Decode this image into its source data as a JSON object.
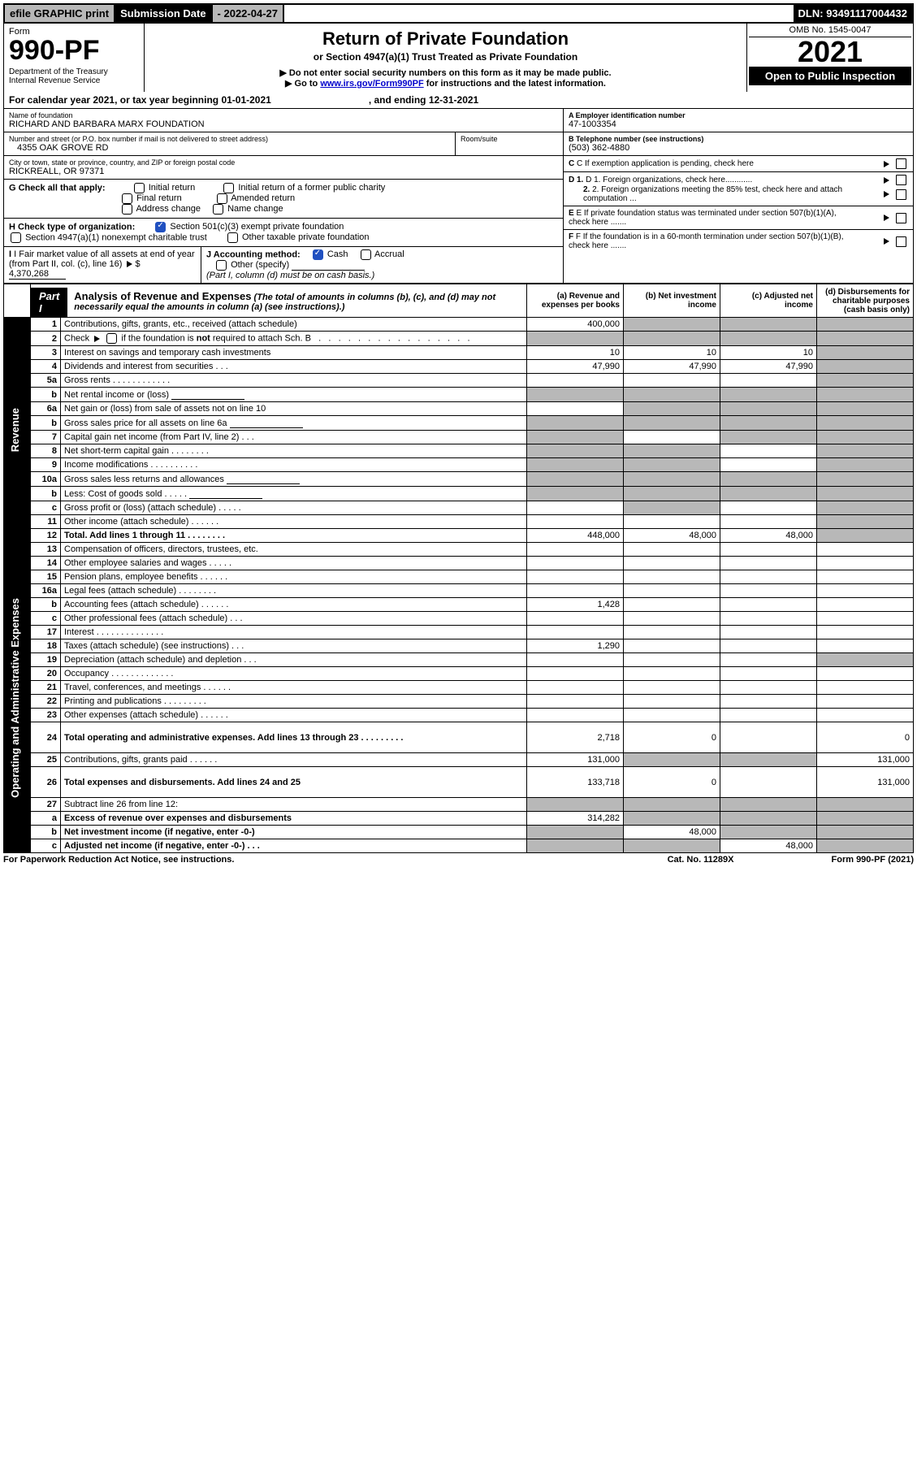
{
  "topbar": {
    "efile": "efile GRAPHIC print",
    "sub_lbl": "Submission Date",
    "sub_val": "- 2022-04-27",
    "dln": "DLN: 93491117004432"
  },
  "header": {
    "form_word": "Form",
    "form_num": "990-PF",
    "dept": "Department of the Treasury",
    "irs": "Internal Revenue Service",
    "title": "Return of Private Foundation",
    "subtitle": "or Section 4947(a)(1) Trust Treated as Private Foundation",
    "note1": "▶ Do not enter social security numbers on this form as it may be made public.",
    "note2a": "▶ Go to ",
    "note2link": "www.irs.gov/Form990PF",
    "note2b": " for instructions and the latest information.",
    "omb": "OMB No. 1545-0047",
    "year": "2021",
    "open": "Open to Public Inspection"
  },
  "calyear": {
    "a": "For calendar year 2021, or tax year beginning 01-01-2021",
    "b": ", and ending 12-31-2021"
  },
  "left": {
    "name_lbl": "Name of foundation",
    "name": "RICHARD AND BARBARA MARX FOUNDATION",
    "addr_lbl": "Number and street (or P.O. box number if mail is not delivered to street address)",
    "addr": "4355 OAK GROVE RD",
    "room_lbl": "Room/suite",
    "city_lbl": "City or town, state or province, country, and ZIP or foreign postal code",
    "city": "RICKREALL, OR  97371",
    "g_lbl": "G Check all that apply:",
    "g_initial": "Initial return",
    "g_initial_former": "Initial return of a former public charity",
    "g_final": "Final return",
    "g_amended": "Amended return",
    "g_addr": "Address change",
    "g_namechg": "Name change",
    "h_lbl": "H Check type of organization:",
    "h_501c3": "Section 501(c)(3) exempt private foundation",
    "h_4947": "Section 4947(a)(1) nonexempt charitable trust",
    "h_other_tax": "Other taxable private foundation",
    "i_lbl": "I Fair market value of all assets at end of year (from Part II, col. (c), line 16)",
    "i_val": "4,370,268",
    "j_lbl": "J Accounting method:",
    "j_cash": "Cash",
    "j_accrual": "Accrual",
    "j_other": "Other (specify)",
    "j_note": "(Part I, column (d) must be on cash basis.)"
  },
  "right": {
    "a_lbl": "A Employer identification number",
    "a_val": "47-1003354",
    "b_lbl": "B Telephone number (see instructions)",
    "b_val": "(503) 362-4880",
    "c_lbl": "C If exemption application is pending, check here",
    "d1_lbl": "D 1. Foreign organizations, check here............",
    "d2_lbl": "2. Foreign organizations meeting the 85% test, check here and attach computation ...",
    "e_lbl": "E  If private foundation status was terminated under section 507(b)(1)(A), check here .......",
    "f_lbl": "F  If the foundation is in a 60-month termination under section 507(b)(1)(B), check here .......",
    "dollar": "$"
  },
  "part1": {
    "tag": "Part I",
    "title": "Analysis of Revenue and Expenses",
    "note": " (The total of amounts in columns (b), (c), and (d) may not necessarily equal the amounts in column (a) (see instructions).)",
    "col_a": "(a)   Revenue and expenses per books",
    "col_b": "(b)   Net investment income",
    "col_c": "(c)   Adjusted net income",
    "col_d": "(d)   Disbursements for charitable purposes (cash basis only)"
  },
  "side": {
    "rev": "Revenue",
    "exp": "Operating and Administrative Expenses"
  },
  "rows": [
    {
      "n": "1",
      "d": "Contributions, gifts, grants, etc., received (attach schedule)",
      "a": "400,000",
      "greyBCD": true
    },
    {
      "n": "2",
      "d": "Check ▶ ☐ if the foundation is not required to attach Sch. B   .   .   .   .   .   .   .   .   .   .   .   .   .   .   .   .",
      "greyAll": true,
      "thick": true,
      "isCheck": true
    },
    {
      "n": "3",
      "d": "Interest on savings and temporary cash investments",
      "a": "10",
      "b": "10",
      "c": "10"
    },
    {
      "n": "4",
      "d": "Dividends and interest from securities   .   .   .",
      "a": "47,990",
      "b": "47,990",
      "c": "47,990"
    },
    {
      "n": "5a",
      "d": "Gross rents   .   .   .   .   .   .   .   .   .   .   .   ."
    },
    {
      "n": "b",
      "d": "Net rental income or (loss)",
      "hasInput": true,
      "greyAll": true
    },
    {
      "n": "6a",
      "d": "Net gain or (loss) from sale of assets not on line 10",
      "greyBCD": true,
      "thick": true,
      "greyBigC": true
    },
    {
      "n": "b",
      "d": "Gross sales price for all assets on line 6a",
      "hasInput": true,
      "greyAll": true
    },
    {
      "n": "7",
      "d": "Capital gain net income (from Part IV, line 2)   .   .   .",
      "greyA": true,
      "greyCD": true
    },
    {
      "n": "8",
      "d": "Net short-term capital gain   .   .   .   .   .   .   .   .",
      "greyAB": true,
      "greyD": true
    },
    {
      "n": "9",
      "d": "Income modifications   .   .   .   .   .   .   .   .   .   .",
      "greyAB": true,
      "greyD": true
    },
    {
      "n": "10a",
      "d": "Gross sales less returns and allowances",
      "hasInput": true,
      "greyAll": true
    },
    {
      "n": "b",
      "d": "Less: Cost of goods sold   .   .   .   .   .",
      "hasInput": true,
      "greyAll": true
    },
    {
      "n": "c",
      "d": "Gross profit or (loss) (attach schedule)   .   .   .   .   .",
      "greyB": true,
      "greyD": true
    },
    {
      "n": "11",
      "d": "Other income (attach schedule)   .   .   .   .   .   ."
    },
    {
      "n": "12",
      "d": "Total. Add lines 1 through 11   .   .   .   .   .   .   .   .",
      "bold": true,
      "a": "448,000",
      "b": "48,000",
      "c": "48,000",
      "greyD": true
    },
    {
      "n": "13",
      "d": "Compensation of officers, directors, trustees, etc."
    },
    {
      "n": "14",
      "d": "Other employee salaries and wages   .   .   .   .   ."
    },
    {
      "n": "15",
      "d": "Pension plans, employee benefits   .   .   .   .   .   ."
    },
    {
      "n": "16a",
      "d": "Legal fees (attach schedule)   .   .   .   .   .   .   .   ."
    },
    {
      "n": "b",
      "d": "Accounting fees (attach schedule)   .   .   .   .   .   .",
      "a": "1,428",
      "thick": true
    },
    {
      "n": "c",
      "d": "Other professional fees (attach schedule)   .   .   ."
    },
    {
      "n": "17",
      "d": "Interest   .   .   .   .   .   .   .   .   .   .   .   .   .   ."
    },
    {
      "n": "18",
      "d": "Taxes (attach schedule) (see instructions)   .   .   .",
      "a": "1,290",
      "thick": true
    },
    {
      "n": "19",
      "d": "Depreciation (attach schedule) and depletion   .   .   .",
      "greyD": true
    },
    {
      "n": "20",
      "d": "Occupancy   .   .   .   .   .   .   .   .   .   .   .   .   ."
    },
    {
      "n": "21",
      "d": "Travel, conferences, and meetings   .   .   .   .   .   ."
    },
    {
      "n": "22",
      "d": "Printing and publications   .   .   .   .   .   .   .   .   ."
    },
    {
      "n": "23",
      "d": "Other expenses (attach schedule)   .   .   .   .   .   ."
    },
    {
      "n": "24",
      "d": "Total operating and administrative expenses. Add lines 13 through 23   .   .   .   .   .   .   .   .   .",
      "bold": true,
      "a": "2,718",
      "b": "0",
      "d_": "0",
      "tall": true
    },
    {
      "n": "25",
      "d": "Contributions, gifts, grants paid   .   .   .   .   .   .",
      "a": "131,000",
      "greyBC": true,
      "d_": "131,000"
    },
    {
      "n": "26",
      "d": "Total expenses and disbursements. Add lines 24 and 25",
      "bold": true,
      "a": "133,718",
      "b": "0",
      "d_": "131,000",
      "tall": true
    },
    {
      "n": "27",
      "d": "Subtract line 26 from line 12:",
      "greyAll": true
    },
    {
      "n": "a",
      "d": "Excess of revenue over expenses and disbursements",
      "bold": true,
      "a": "314,282",
      "greyBCD": true
    },
    {
      "n": "b",
      "d": "Net investment income (if negative, enter -0-)",
      "bold": true,
      "greyA": true,
      "b": "48,000",
      "greyCD": true
    },
    {
      "n": "c",
      "d": "Adjusted net income (if negative, enter -0-)   .   .   .",
      "bold": true,
      "greyAB": true,
      "c": "48,000",
      "greyD": true
    }
  ],
  "footer": {
    "left": "For Paperwork Reduction Act Notice, see instructions.",
    "mid": "Cat. No. 11289X",
    "right": "Form 990-PF (2021)"
  }
}
